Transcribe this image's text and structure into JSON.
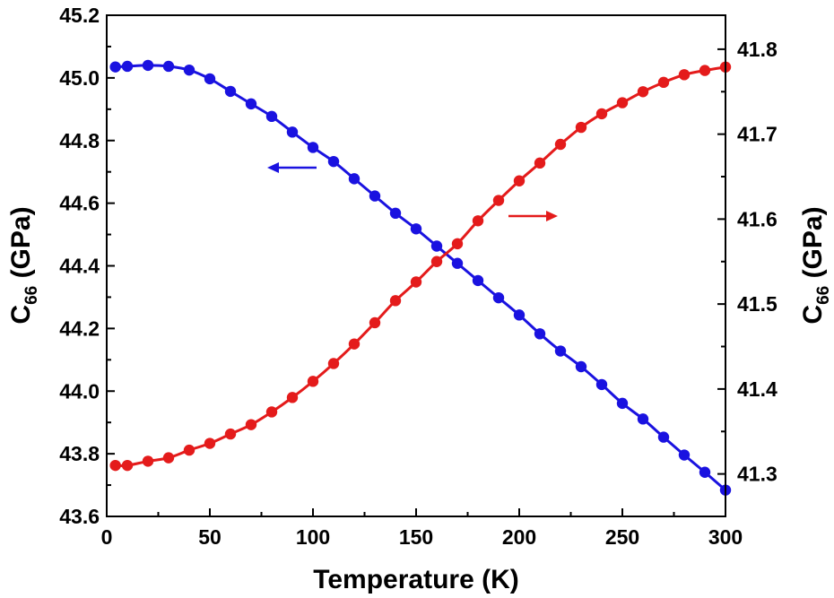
{
  "chart_data": {
    "type": "line",
    "xlabel": "Temperature (K)",
    "xlim": [
      0,
      300
    ],
    "x_ticks": [
      "0",
      "50",
      "100",
      "150",
      "200",
      "250",
      "300"
    ],
    "y_left": {
      "label_main": "C",
      "label_sub": "66",
      "label_unit": " (GPa)",
      "lim": [
        43.6,
        45.2
      ],
      "ticks": [
        "43.6",
        "43.8",
        "44.0",
        "44.2",
        "44.4",
        "44.6",
        "44.8",
        "45.0",
        "45.2"
      ]
    },
    "y_right": {
      "label_main": "C",
      "label_sub": "66",
      "label_unit": " (GPa)",
      "lim": [
        41.25,
        41.84
      ],
      "ticks": [
        "41.3",
        "41.4",
        "41.5",
        "41.6",
        "41.7",
        "41.8"
      ]
    },
    "x": [
      4.2,
      10,
      20,
      30,
      40,
      50,
      60,
      70,
      80,
      90,
      100,
      110,
      120,
      130,
      140,
      150,
      160,
      170,
      180,
      190,
      200,
      210,
      220,
      230,
      240,
      250,
      260,
      270,
      280,
      290,
      300
    ],
    "series": [
      {
        "axis": "left",
        "color": "#1a12e0",
        "arrow": "left",
        "values": [
          45.035,
          45.037,
          45.04,
          45.037,
          45.025,
          44.997,
          44.957,
          44.917,
          44.877,
          44.827,
          44.778,
          44.733,
          44.678,
          44.623,
          44.568,
          44.518,
          44.463,
          44.408,
          44.353,
          44.298,
          44.243,
          44.183,
          44.128,
          44.078,
          44.021,
          43.961,
          43.911,
          43.853,
          43.796,
          43.741,
          43.684
        ]
      },
      {
        "axis": "right",
        "color": "#e41b1b",
        "arrow": "right",
        "values": [
          41.31,
          41.31,
          41.315,
          41.319,
          41.328,
          41.336,
          41.347,
          41.358,
          41.373,
          41.39,
          41.409,
          41.43,
          41.453,
          41.478,
          41.504,
          41.526,
          41.55,
          41.571,
          41.598,
          41.622,
          41.645,
          41.666,
          41.688,
          41.708,
          41.724,
          41.737,
          41.75,
          41.761,
          41.77,
          41.775,
          41.779
        ]
      }
    ]
  }
}
